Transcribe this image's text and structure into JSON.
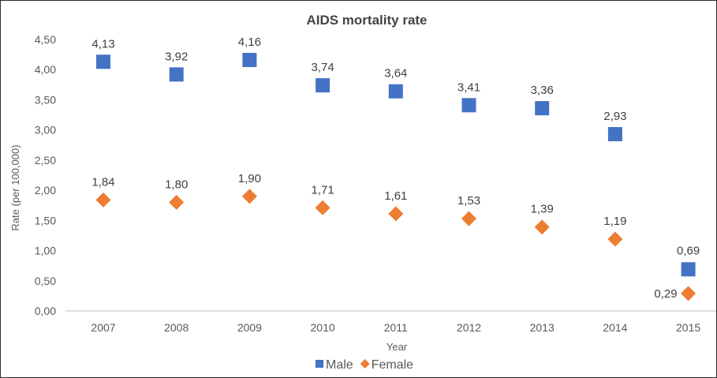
{
  "chart_data": {
    "type": "scatter",
    "title": "AIDS mortality rate",
    "xlabel": "Year",
    "ylabel": "Rate (per 100,000)",
    "categories": [
      "2007",
      "2008",
      "2009",
      "2010",
      "2011",
      "2012",
      "2013",
      "2014",
      "2015"
    ],
    "y_ticks": [
      "0,00",
      "0,50",
      "1,00",
      "1,50",
      "2,00",
      "2,50",
      "3,00",
      "3,50",
      "4,00",
      "4,50"
    ],
    "ylim": [
      0,
      4.5
    ],
    "grid": false,
    "legend_position": "bottom",
    "series": [
      {
        "name": "Male",
        "color": "#4472C4",
        "marker": "square",
        "values": [
          4.13,
          3.92,
          4.16,
          3.74,
          3.64,
          3.41,
          3.36,
          2.93,
          0.69
        ],
        "labels": [
          "4,13",
          "3,92",
          "4,16",
          "3,74",
          "3,64",
          "3,41",
          "3,36",
          "2,93",
          "0,69"
        ]
      },
      {
        "name": "Female",
        "color": "#ED7D31",
        "marker": "diamond",
        "values": [
          1.84,
          1.8,
          1.9,
          1.71,
          1.61,
          1.53,
          1.39,
          1.19,
          0.29
        ],
        "labels": [
          "1,84",
          "1,80",
          "1,90",
          "1,71",
          "1,61",
          "1,53",
          "1,39",
          "1,19",
          "0,29"
        ]
      }
    ]
  }
}
